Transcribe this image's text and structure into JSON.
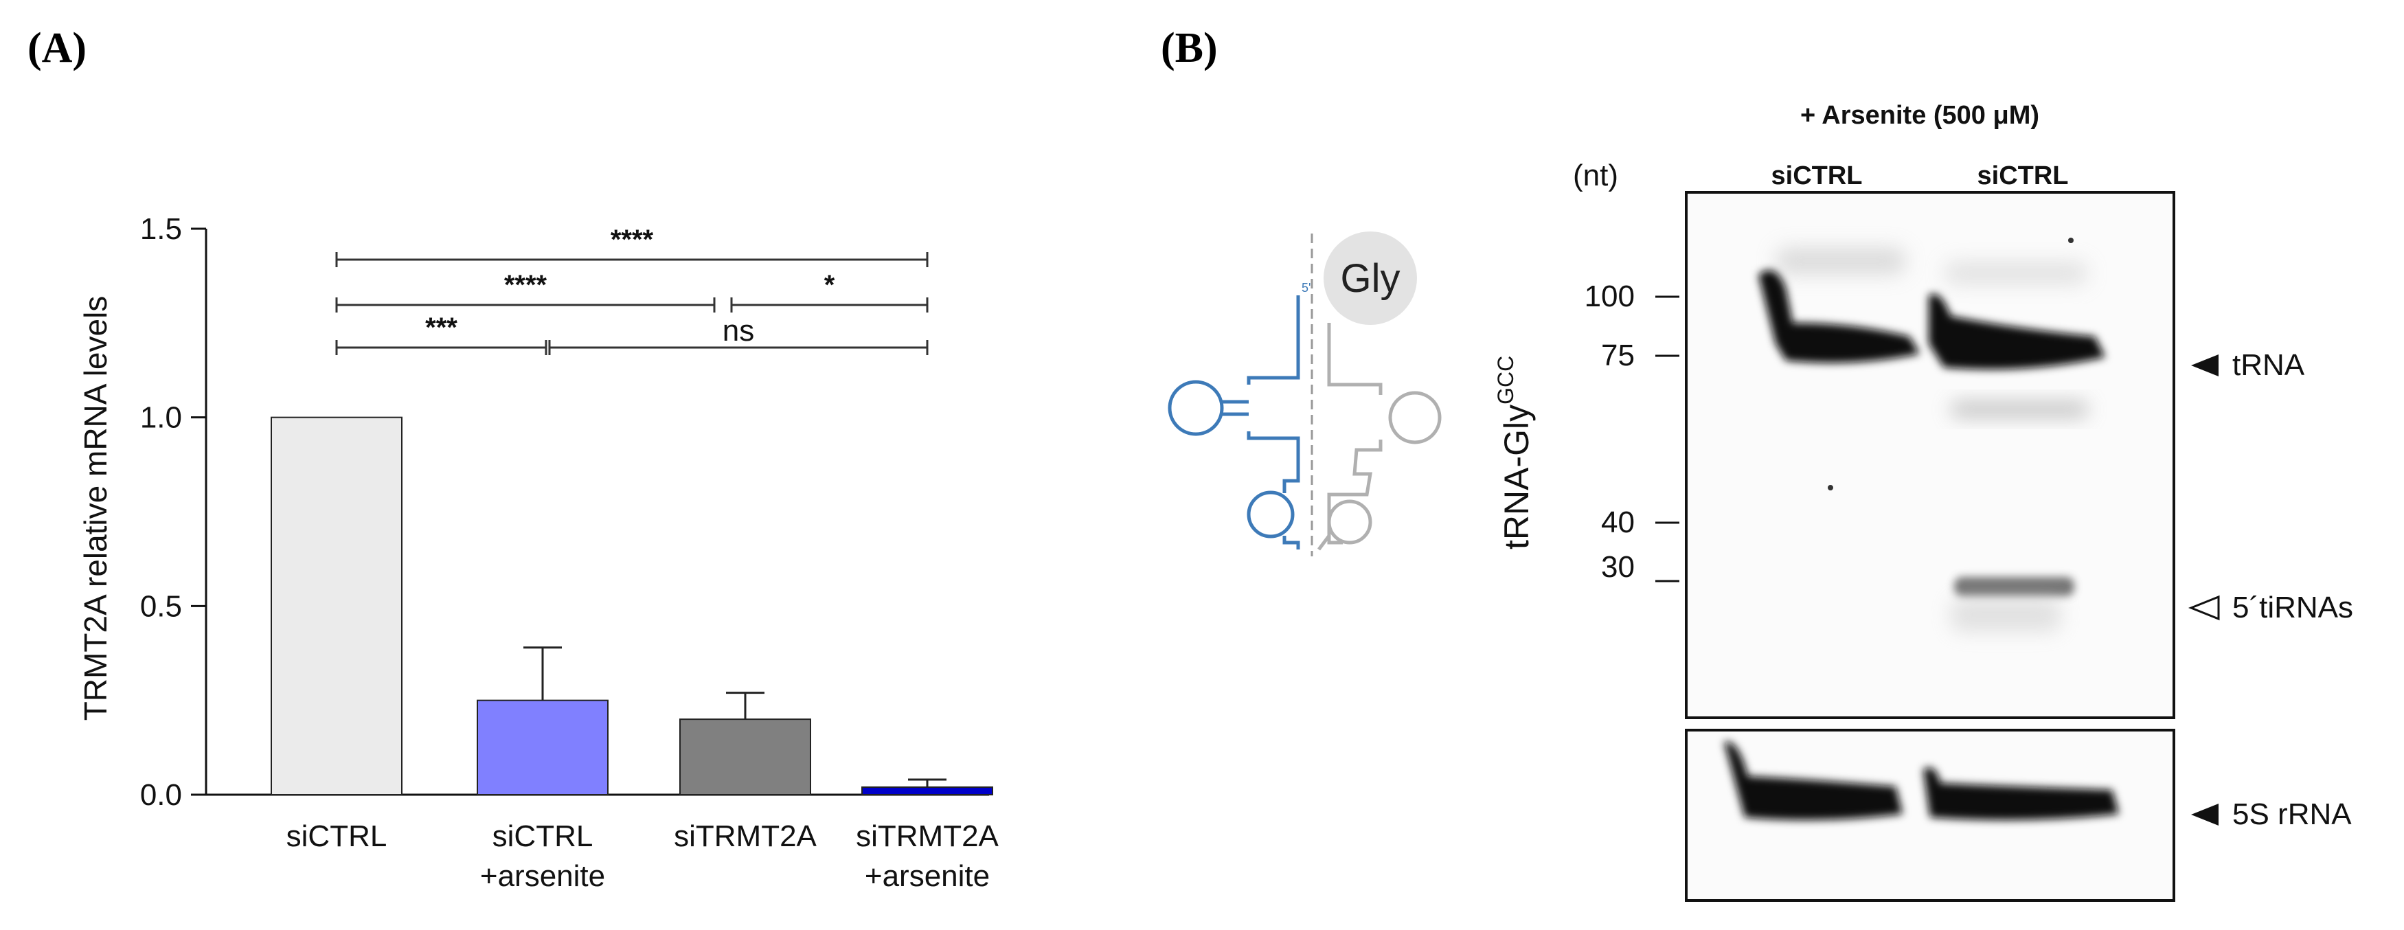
{
  "panel_a_label": "(A)",
  "panel_b_label": "(B)",
  "chart_data": {
    "type": "bar",
    "ylabel": "TRMT2A relative mRNA levels",
    "ylim": [
      0,
      1.5
    ],
    "yticks": [
      "0.0",
      "0.5",
      "1.0",
      "1.5"
    ],
    "categories": [
      {
        "line1": "siCTRL",
        "line2": ""
      },
      {
        "line1": "siCTRL",
        "line2": "+arsenite"
      },
      {
        "line1": "siTRMT2A",
        "line2": ""
      },
      {
        "line1": "siTRMT2A",
        "line2": "+arsenite"
      }
    ],
    "values": [
      1.0,
      0.25,
      0.2,
      0.02
    ],
    "errors": [
      0.0,
      0.14,
      0.07,
      0.02
    ],
    "colors": [
      "#ebebeb",
      "#8080ff",
      "#808080",
      "#0000c8"
    ],
    "significance": [
      {
        "from": 0,
        "to": 3,
        "label": "****"
      },
      {
        "from": 0,
        "to": 2,
        "label": "****"
      },
      {
        "from": 2,
        "to": 3,
        "label": "*"
      },
      {
        "from": 0,
        "to": 1,
        "label": "***"
      },
      {
        "from": 1,
        "to": 3,
        "label": "ns"
      }
    ]
  },
  "blot": {
    "treatment_header": "+ Arsenite (500 μM)",
    "unit": "(nt)",
    "lane1": "siCTRL",
    "lane2": "siCTRL",
    "markers": [
      "100",
      "75",
      "40",
      "30"
    ],
    "probe_main": "tRNA-Gly",
    "probe_sup": "GCC",
    "bands": {
      "trna": "tRNA",
      "tirnas": "5´tiRNAs",
      "rrna": "5S rRNA"
    },
    "schematic_label": "Gly"
  }
}
